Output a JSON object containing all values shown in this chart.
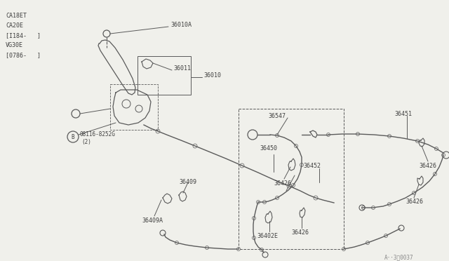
{
  "bg_color": "#f0f0eb",
  "line_color": "#5a5a5a",
  "text_color": "#404040",
  "watermark": "A··3⁄0037",
  "engine_labels": [
    "CA18ET",
    "CA20E",
    "[I184-   ]",
    "VG30E",
    "[0786-   ]"
  ],
  "fig_w": 6.4,
  "fig_h": 3.72,
  "dpi": 100
}
